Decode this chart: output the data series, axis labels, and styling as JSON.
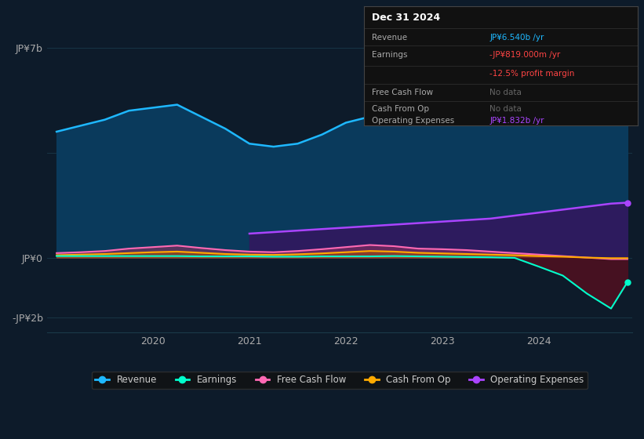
{
  "bg_color": "#0d1b2a",
  "plot_bg_color": "#0d1b2a",
  "title_box": {
    "date": "Dec 31 2024",
    "rows": [
      {
        "label": "Revenue",
        "value": "JP¥6.540b /yr",
        "value_color": "#1eb8ff",
        "show_label": true
      },
      {
        "label": "Earnings",
        "value": "-JP¥819.000m /yr",
        "value_color": "#ff4444",
        "show_label": true
      },
      {
        "label": "",
        "value": "-12.5% profit margin",
        "value_color": "#ff4444",
        "show_label": false
      },
      {
        "label": "Free Cash Flow",
        "value": "No data",
        "value_color": "#666666",
        "show_label": true
      },
      {
        "label": "Cash From Op",
        "value": "No data",
        "value_color": "#666666",
        "show_label": true
      },
      {
        "label": "Operating Expenses",
        "value": "JP¥1.832b /yr",
        "value_color": "#aa44ff",
        "show_label": true
      }
    ]
  },
  "ytick_labels": [
    "-JP¥2b",
    "JP¥0",
    "JP¥7b"
  ],
  "ytick_vals": [
    -2000000000,
    0,
    7000000000
  ],
  "xtick_years": [
    2020,
    2021,
    2022,
    2023,
    2024
  ],
  "legend": [
    {
      "label": "Revenue",
      "color": "#1eb8ff"
    },
    {
      "label": "Earnings",
      "color": "#00ffcc"
    },
    {
      "label": "Free Cash Flow",
      "color": "#ff69b4"
    },
    {
      "label": "Cash From Op",
      "color": "#ffaa00"
    },
    {
      "label": "Operating Expenses",
      "color": "#aa44ff"
    }
  ],
  "series": {
    "time": [
      2019.0,
      2019.25,
      2019.5,
      2019.75,
      2020.0,
      2020.25,
      2020.5,
      2020.75,
      2021.0,
      2021.25,
      2021.5,
      2021.75,
      2022.0,
      2022.25,
      2022.5,
      2022.75,
      2023.0,
      2023.25,
      2023.5,
      2023.75,
      2024.0,
      2024.25,
      2024.5,
      2024.75,
      2024.92
    ],
    "revenue": [
      4200000000,
      4400000000,
      4600000000,
      4900000000,
      5000000000,
      5100000000,
      4700000000,
      4300000000,
      3800000000,
      3700000000,
      3800000000,
      4100000000,
      4500000000,
      4700000000,
      4800000000,
      4700000000,
      4600000000,
      4700000000,
      4800000000,
      5000000000,
      5200000000,
      5500000000,
      6000000000,
      6400000000,
      6540000000
    ],
    "earnings": [
      50000000,
      50000000,
      50000000,
      50000000,
      50000000,
      50000000,
      40000000,
      40000000,
      40000000,
      30000000,
      30000000,
      40000000,
      40000000,
      40000000,
      50000000,
      40000000,
      30000000,
      20000000,
      10000000,
      -10000000,
      -300000000,
      -600000000,
      -1200000000,
      -1700000000,
      -819000000
    ],
    "free_cash_flow": [
      150000000,
      180000000,
      220000000,
      300000000,
      350000000,
      400000000,
      320000000,
      250000000,
      200000000,
      180000000,
      220000000,
      280000000,
      350000000,
      420000000,
      380000000,
      300000000,
      280000000,
      250000000,
      200000000,
      150000000,
      100000000,
      50000000,
      0,
      -50000000,
      -50000000
    ],
    "cash_from_op": [
      80000000,
      100000000,
      120000000,
      150000000,
      180000000,
      200000000,
      160000000,
      120000000,
      100000000,
      90000000,
      110000000,
      140000000,
      180000000,
      220000000,
      200000000,
      160000000,
      140000000,
      120000000,
      100000000,
      80000000,
      50000000,
      30000000,
      0,
      -20000000,
      -20000000
    ],
    "operating_expenses": [
      null,
      null,
      null,
      null,
      null,
      null,
      null,
      null,
      800000000,
      850000000,
      900000000,
      950000000,
      1000000000,
      1050000000,
      1100000000,
      1150000000,
      1200000000,
      1250000000,
      1300000000,
      1400000000,
      1500000000,
      1600000000,
      1700000000,
      1800000000,
      1832000000
    ]
  }
}
